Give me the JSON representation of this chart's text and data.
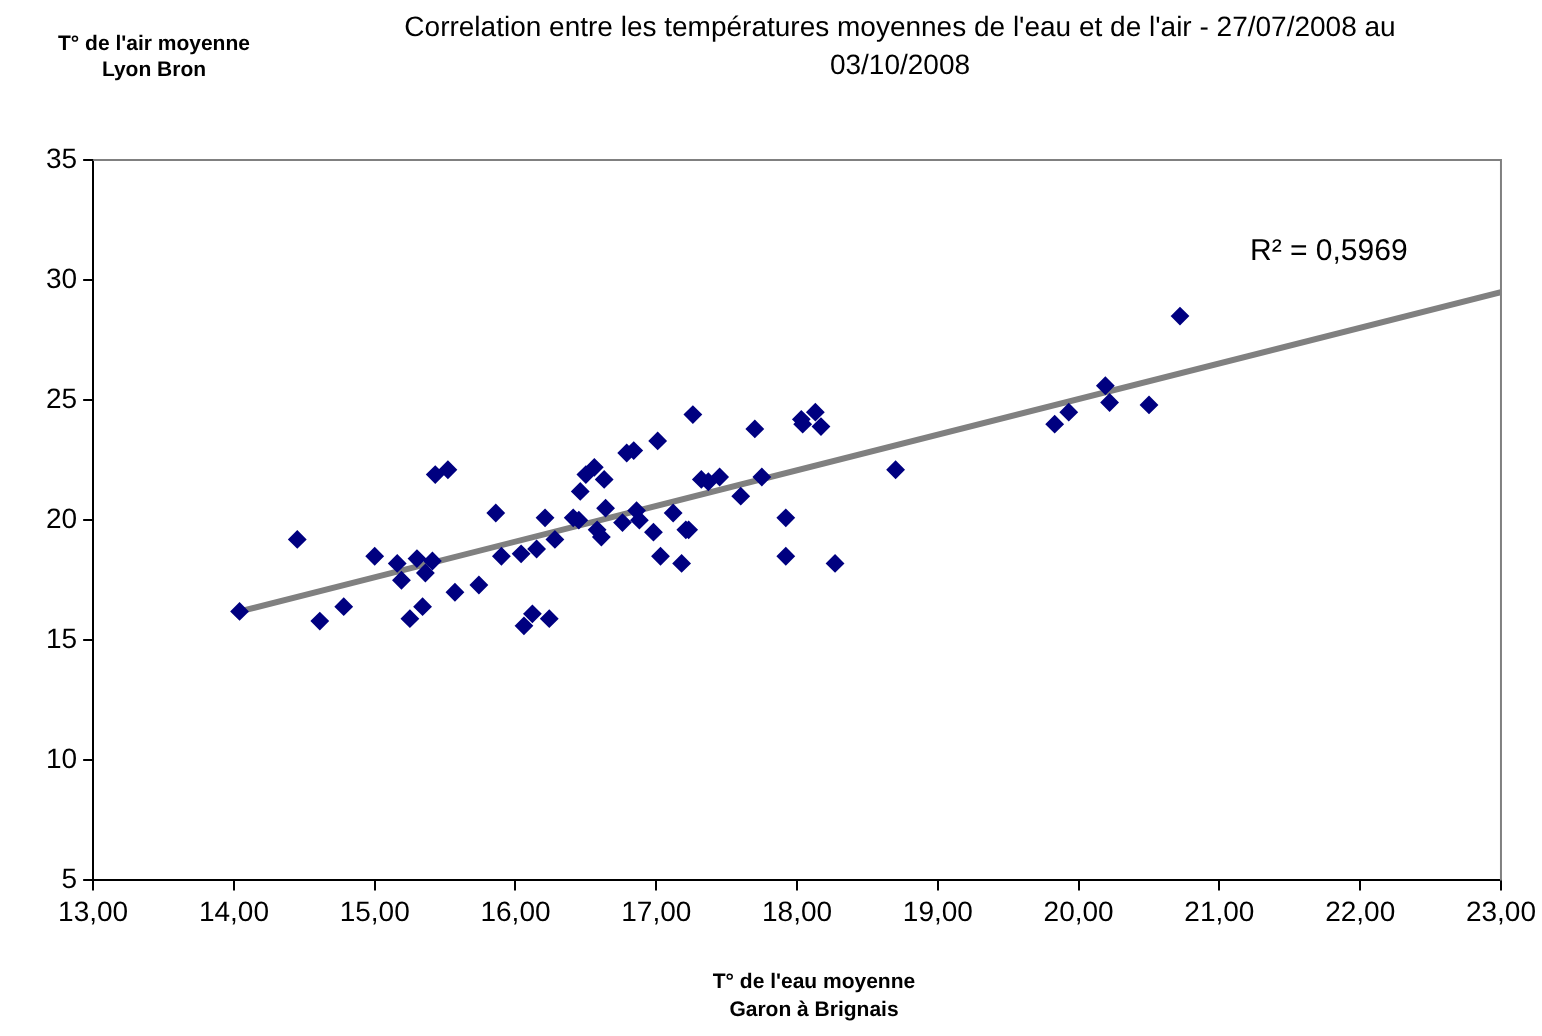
{
  "chart_data": {
    "type": "scatter",
    "title": "Correlation entre les températures moyennes de l'eau et de l'air - 27/07/2008 au 03/10/2008",
    "xlabel": "T° de l'eau moyenne\nGaron à Brignais",
    "ylabel": "T° de l'air moyenne\nLyon Bron",
    "annotations": [
      "R² = 0,5969"
    ],
    "xlim": [
      13,
      23
    ],
    "xticks": [
      {
        "value": 13,
        "label": "13,00"
      },
      {
        "value": 14,
        "label": "14,00"
      },
      {
        "value": 15,
        "label": "15,00"
      },
      {
        "value": 16,
        "label": "16,00"
      },
      {
        "value": 17,
        "label": "17,00"
      },
      {
        "value": 18,
        "label": "18,00"
      },
      {
        "value": 19,
        "label": "19,00"
      },
      {
        "value": 20,
        "label": "20,00"
      },
      {
        "value": 21,
        "label": "21,00"
      },
      {
        "value": 22,
        "label": "22,00"
      },
      {
        "value": 23,
        "label": "23,00"
      }
    ],
    "ylim": [
      5,
      35
    ],
    "yticks": [
      5,
      10,
      15,
      20,
      25,
      30,
      35
    ],
    "grid": false,
    "legend": false,
    "marker": "diamond",
    "series": [
      {
        "type": "scatter",
        "color": "#000080",
        "x": [
          14.04,
          14.45,
          14.61,
          14.78,
          15.0,
          15.16,
          15.19,
          15.25,
          15.3,
          15.34,
          15.36,
          15.41,
          15.43,
          15.52,
          15.57,
          15.74,
          15.86,
          15.9,
          16.04,
          16.06,
          16.12,
          16.15,
          16.21,
          16.24,
          16.28,
          16.41,
          16.45,
          16.46,
          16.5,
          16.56,
          16.58,
          16.61,
          16.63,
          16.64,
          16.76,
          16.79,
          16.84,
          16.86,
          16.88,
          16.98,
          17.01,
          17.03,
          17.12,
          17.18,
          17.21,
          17.23,
          17.26,
          17.32,
          17.37,
          17.45,
          17.6,
          17.7,
          17.75,
          17.92,
          17.92,
          18.03,
          18.04,
          18.13,
          18.17,
          18.27,
          18.7,
          19.83,
          19.93,
          20.19,
          20.22,
          20.5,
          20.72
        ],
        "values": [
          16.2,
          19.2,
          15.8,
          16.4,
          18.5,
          18.2,
          17.5,
          15.9,
          18.4,
          16.4,
          17.8,
          18.3,
          21.9,
          22.1,
          17.0,
          17.3,
          20.3,
          18.5,
          18.6,
          15.6,
          16.1,
          18.8,
          20.1,
          15.9,
          19.2,
          20.1,
          20.0,
          21.2,
          21.9,
          22.2,
          19.6,
          19.3,
          21.7,
          20.5,
          19.9,
          22.8,
          22.9,
          20.4,
          20.0,
          19.5,
          23.3,
          18.5,
          20.3,
          18.2,
          19.6,
          19.6,
          24.4,
          21.7,
          21.6,
          21.8,
          21.0,
          23.8,
          21.8,
          20.1,
          18.5,
          24.2,
          24.0,
          24.5,
          23.9,
          18.2,
          22.1,
          24.0,
          24.5,
          25.6,
          24.9,
          24.8,
          28.5
        ]
      },
      {
        "type": "line",
        "color": "#808080",
        "marker": "none",
        "x": [
          14.04,
          23
        ],
        "values": [
          16.2,
          29.5
        ]
      }
    ]
  }
}
